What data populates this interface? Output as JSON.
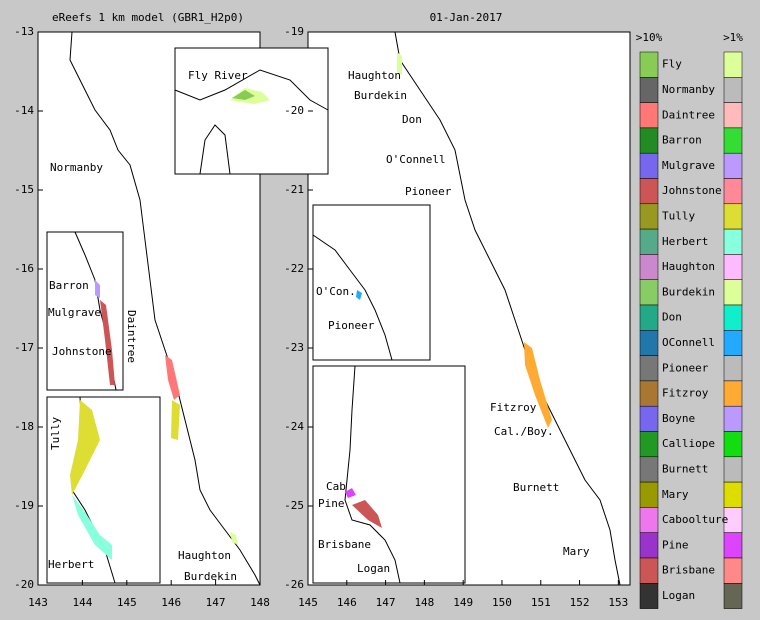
{
  "left_map": {
    "title": "eReefs 1 km model (GBR1_H2p0)",
    "xlim": [
      143,
      148
    ],
    "ylim": [
      -20,
      -13
    ],
    "xticks": [
      143,
      144,
      145,
      146,
      147,
      148
    ],
    "yticks": [
      -13,
      -14,
      -15,
      -16,
      -17,
      -18,
      -19,
      -20
    ],
    "labels": [
      "Normanby",
      "Daintree",
      "Haughton",
      "Burdekin"
    ],
    "insets": [
      {
        "labels": [
          "Fly River"
        ]
      },
      {
        "labels": [
          "Barron",
          "Mulgrave",
          "Johnstone"
        ]
      },
      {
        "labels": [
          "Tully",
          "Herbert"
        ]
      }
    ]
  },
  "right_map": {
    "title": "01-Jan-2017",
    "xlim": [
      145,
      153.3
    ],
    "ylim": [
      -26,
      -19
    ],
    "xticks": [
      145,
      146,
      147,
      148,
      149,
      150,
      151,
      152,
      153
    ],
    "yticks": [
      -19,
      -20,
      -21,
      -22,
      -23,
      -24,
      -25,
      -26
    ],
    "labels": [
      "Haughton",
      "Burdekin",
      "Don",
      "O'Connell",
      "Pioneer",
      "Fitzroy",
      "Cal./Boy.",
      "Burnett",
      "Mary"
    ],
    "insets": [
      {
        "labels": [
          "O'Con.",
          "Pioneer"
        ]
      },
      {
        "labels": [
          "Cab",
          "Pine",
          "Brisbane",
          "Logan"
        ]
      }
    ]
  },
  "legend": {
    "headers": [
      ">10%",
      ">1%"
    ],
    "rivers": [
      {
        "name": "Fly",
        "colors": [
          "#88cc55",
          "#ddff99"
        ]
      },
      {
        "name": "Normanby",
        "colors": [
          "#666666",
          "#bbbbbb"
        ]
      },
      {
        "name": "Daintree",
        "colors": [
          "#ff7777",
          "#ffbbbb"
        ]
      },
      {
        "name": "Barron",
        "colors": [
          "#228b22",
          "#33dd33"
        ]
      },
      {
        "name": "Mulgrave",
        "colors": [
          "#7766ee",
          "#bb99ff"
        ]
      },
      {
        "name": "Johnstone",
        "colors": [
          "#cc5555",
          "#ff8899"
        ]
      },
      {
        "name": "Tully",
        "colors": [
          "#999922",
          "#dddd33"
        ]
      },
      {
        "name": "Herbert",
        "colors": [
          "#55aa88",
          "#88ffdd"
        ]
      },
      {
        "name": "Haughton",
        "colors": [
          "#cc88cc",
          "#ffbbff"
        ]
      },
      {
        "name": "Burdekin",
        "colors": [
          "#88cc66",
          "#ddff99"
        ]
      },
      {
        "name": "Don",
        "colors": [
          "#22aa88",
          "#11eecc"
        ]
      },
      {
        "name": "OConnell",
        "colors": [
          "#2277aa",
          "#22aaff"
        ]
      },
      {
        "name": "Pioneer",
        "colors": [
          "#777777",
          "#bbbbbb"
        ]
      },
      {
        "name": "Fitzroy",
        "colors": [
          "#aa7733",
          "#ffaa33"
        ]
      },
      {
        "name": "Boyne",
        "colors": [
          "#7766ee",
          "#bb99ff"
        ]
      },
      {
        "name": "Calliope",
        "colors": [
          "#229922",
          "#11dd11"
        ]
      },
      {
        "name": "Burnett",
        "colors": [
          "#777777",
          "#bbbbbb"
        ]
      },
      {
        "name": "Mary",
        "colors": [
          "#999900",
          "#dddd00"
        ]
      },
      {
        "name": "Caboolture",
        "colors": [
          "#ee77ee",
          "#ffccff"
        ]
      },
      {
        "name": "Pine",
        "colors": [
          "#9933cc",
          "#dd44ff"
        ]
      },
      {
        "name": "Brisbane",
        "colors": [
          "#cc5555",
          "#ff8888"
        ]
      },
      {
        "name": "Logan",
        "colors": [
          "#333333",
          "#666655"
        ]
      }
    ]
  }
}
